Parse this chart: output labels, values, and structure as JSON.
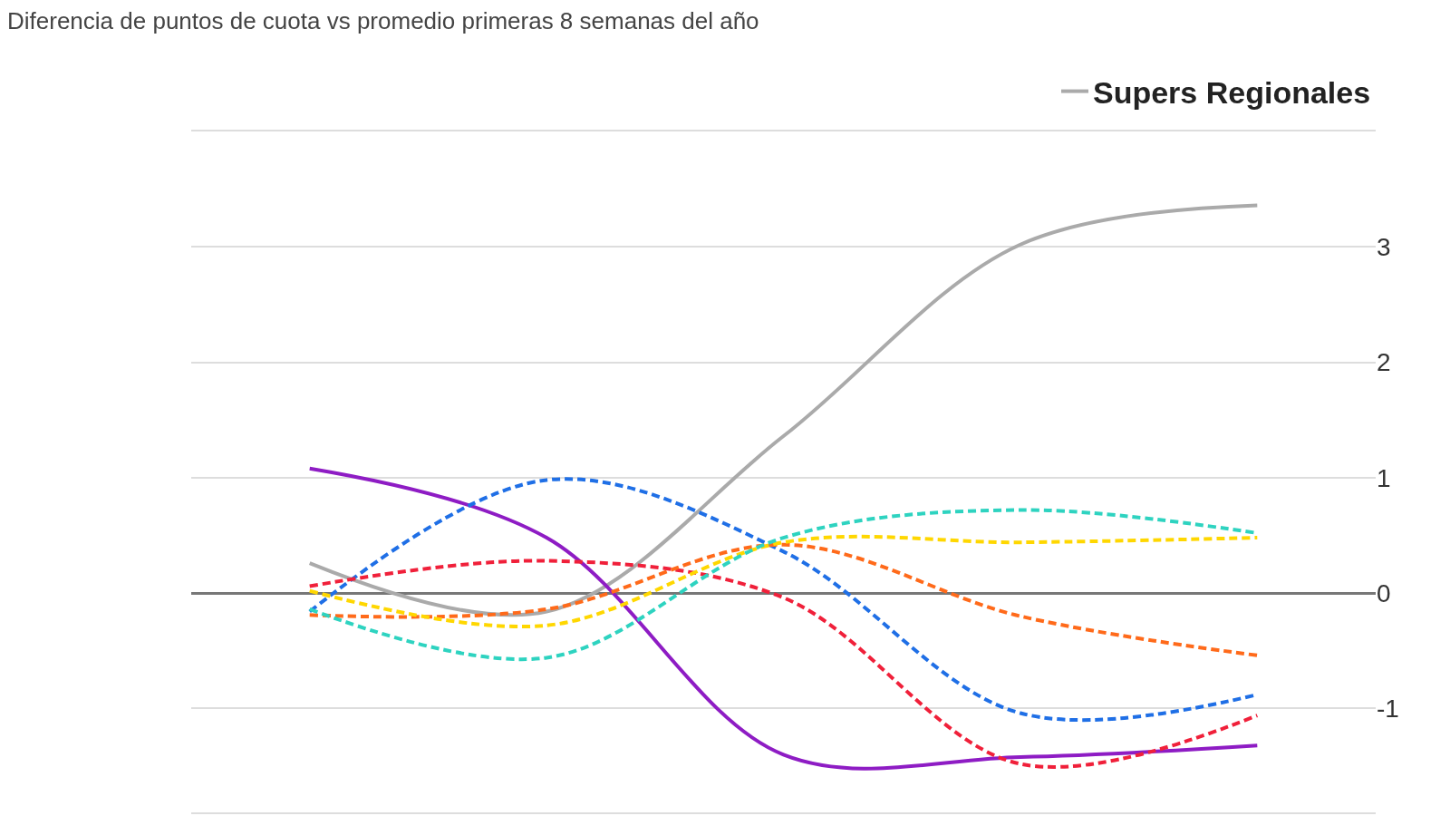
{
  "chart_data": {
    "type": "line",
    "title": "Diferencia de puntos de cuota vs promedio primeras 8 semanas del año",
    "categories": [
      null,
      null,
      null,
      null,
      null
    ],
    "series": [
      {
        "name": "Supers Regionales",
        "color": "#aaaaaa",
        "line_style": "solid",
        "values": [
          0.26,
          -0.16,
          1.36,
          3.02,
          3.36
        ]
      },
      {
        "color": "#8e1cc4",
        "line_style": "solid",
        "values": [
          1.08,
          0.48,
          -1.4,
          -1.42,
          -1.32
        ]
      },
      {
        "color": "#1f6fe6",
        "line_style": "dashed",
        "values": [
          -0.16,
          0.98,
          0.36,
          -1.04,
          -0.88
        ]
      },
      {
        "color": "#f0203a",
        "line_style": "dashed",
        "values": [
          0.06,
          0.28,
          -0.04,
          -1.48,
          -1.06
        ]
      },
      {
        "color": "#ff6a1a",
        "line_style": "dashed",
        "values": [
          -0.19,
          -0.14,
          0.42,
          -0.2,
          -0.54
        ]
      },
      {
        "color": "#ffd700",
        "line_style": "dashed",
        "values": [
          0.02,
          -0.28,
          0.44,
          0.44,
          0.48
        ]
      },
      {
        "color": "#2ed3c0",
        "line_style": "dashed",
        "values": [
          -0.14,
          -0.56,
          0.48,
          0.72,
          0.52
        ]
      }
    ],
    "ylim": [
      -1.9,
      4
    ],
    "yticks": [
      -1,
      0,
      1,
      2,
      3,
      {
        "value": 4,
        "label": null
      }
    ],
    "grid": "y",
    "legend": "top right",
    "tick_labels": "y",
    "marker": "none"
  }
}
